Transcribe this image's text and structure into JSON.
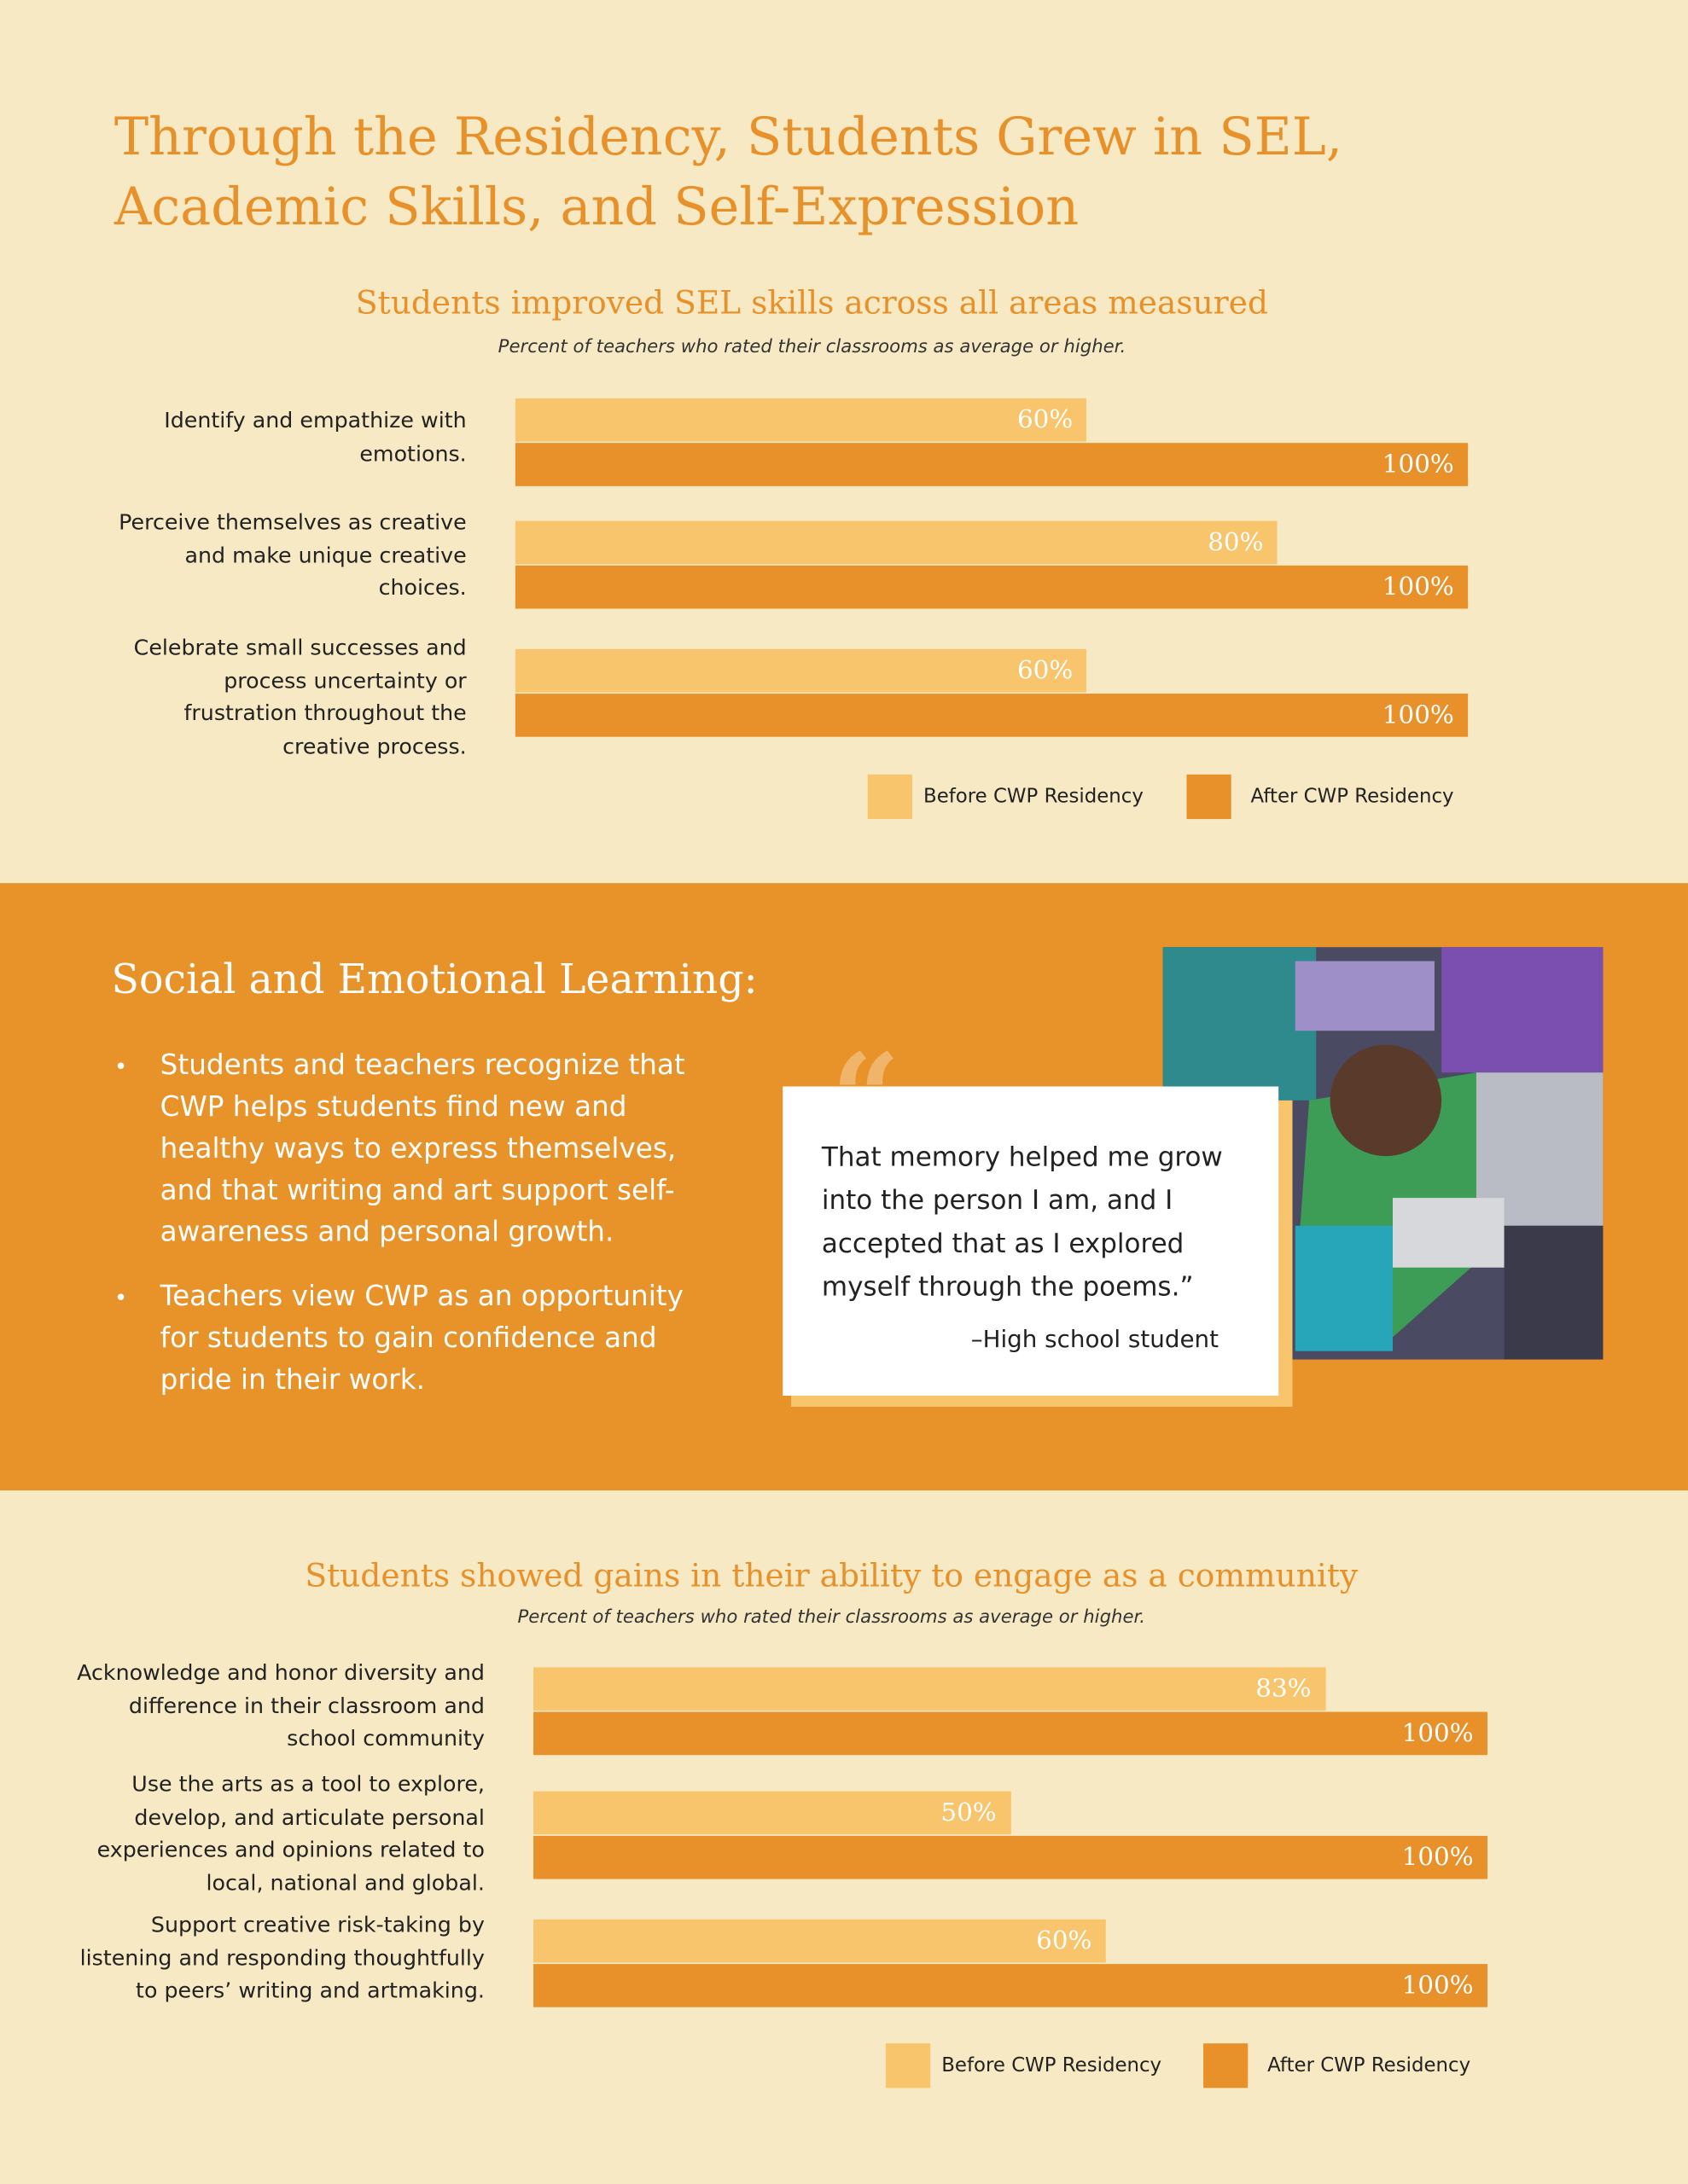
{
  "title": "Through the Residency, Students Grew in SEL, Academic Skills, and Self-Expression",
  "chart_data": [
    {
      "type": "bar",
      "orientation": "horizontal",
      "title": "Students improved SEL skills across all areas measured",
      "subtitle": "Percent of teachers who rated their classrooms as average or higher.",
      "categories": [
        "Identify and empathize with emotions.",
        "Perceive themselves as creative and make unique creative choices.",
        "Celebrate small successes and process uncertainty or frustration throughout the creative process."
      ],
      "series": [
        {
          "name": "Before CWP Residency",
          "color": "#f8c46c",
          "values": [
            60,
            80,
            60
          ],
          "value_labels": [
            "60%",
            "80%",
            "60%"
          ]
        },
        {
          "name": "After CWP Residency",
          "color": "#e8912a",
          "values": [
            100,
            100,
            100
          ],
          "value_labels": [
            "100%",
            "100%",
            "100%"
          ]
        }
      ],
      "legend": "bottom-right"
    },
    {
      "type": "bar",
      "orientation": "horizontal",
      "title": "Students showed gains in their ability to engage as a community",
      "subtitle": "Percent of teachers who rated their classrooms as average or higher.",
      "categories": [
        "Acknowledge and honor diversity and difference in their classroom and school community",
        "Use the arts as a tool to explore, develop, and articulate personal experiences and opinions related to local, national and global.",
        "Support creative risk-taking by listening and responding thoughtfully to peers’ writing and artmaking."
      ],
      "series": [
        {
          "name": "Before CWP Residency",
          "color": "#f8c46c",
          "values": [
            83,
            50,
            60
          ],
          "value_labels": [
            "83%",
            "50%",
            "60%"
          ]
        },
        {
          "name": "After CWP Residency",
          "color": "#e8912a",
          "values": [
            100,
            100,
            100
          ],
          "value_labels": [
            "100%",
            "100%",
            "100%"
          ]
        }
      ],
      "legend": "bottom-right"
    }
  ],
  "sel_section": {
    "heading": "Social and Emotional Learning:",
    "bullets": [
      "Students and teachers recognize that CWP helps students find new and healthy ways to express themselves, and that writing and art support self-awareness and personal growth.",
      "Teachers view CWP as an opportunity for students to gain confidence and pride in their work."
    ],
    "quote": {
      "text": "That memory helped me grow into the person I am, and I accepted that as I explored myself through the poems.”",
      "attribution": "–High school student"
    }
  }
}
